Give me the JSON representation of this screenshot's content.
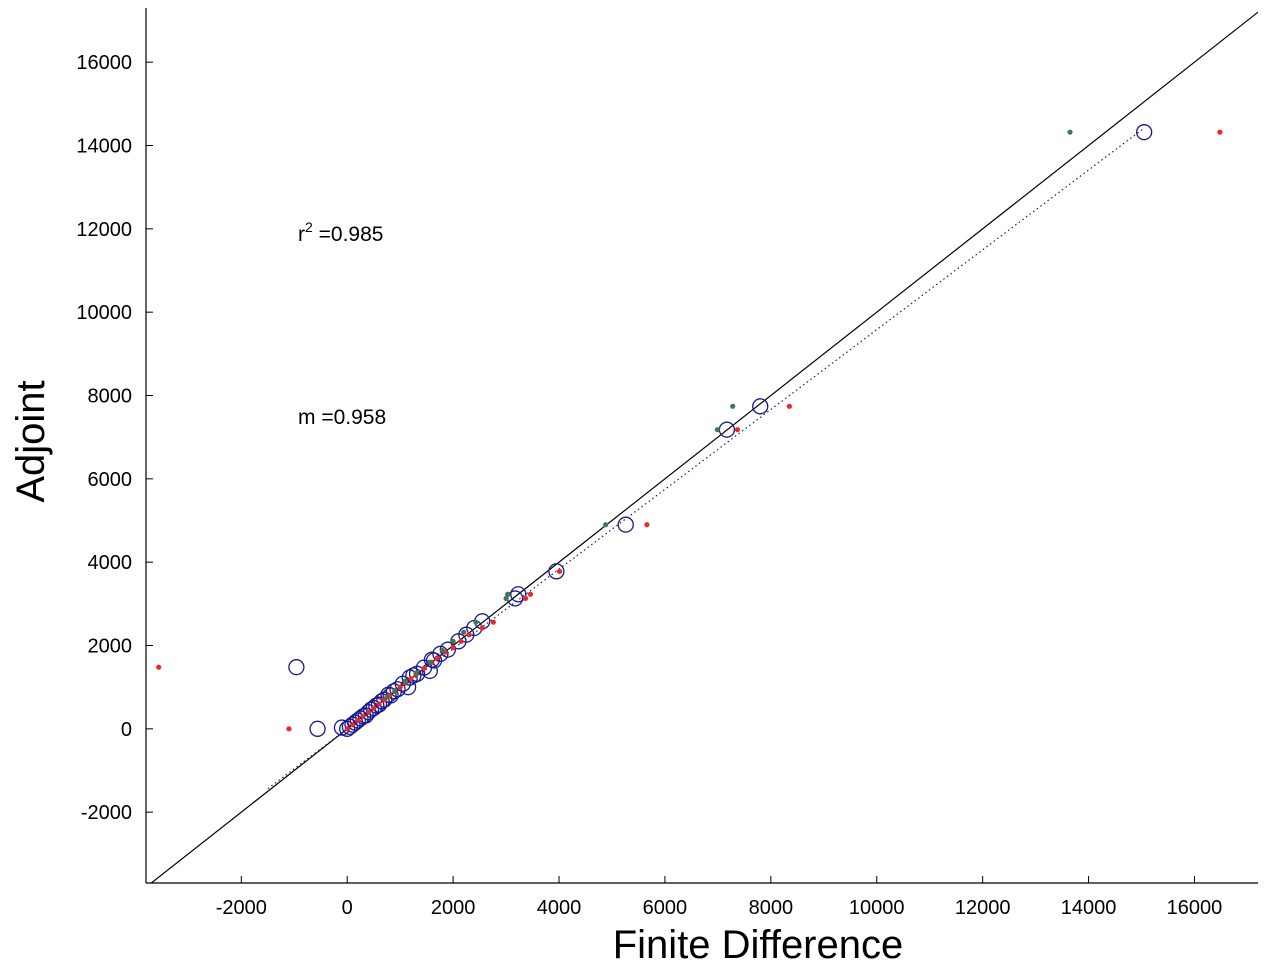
{
  "chart_data": {
    "type": "scatter",
    "title": "",
    "xlabel": "Finite Difference",
    "ylabel": "Adjoint",
    "xlim": [
      -3800,
      17200
    ],
    "ylim": [
      -3700,
      17300
    ],
    "xticks": [
      -2000,
      0,
      2000,
      4000,
      6000,
      8000,
      10000,
      12000,
      14000,
      16000
    ],
    "yticks": [
      -2000,
      0,
      2000,
      4000,
      6000,
      8000,
      10000,
      12000,
      14000,
      16000
    ],
    "xtick_labels": [
      "-2000",
      "0",
      "2000",
      "4000",
      "6000",
      "8000",
      "10000",
      "12000",
      "14000",
      "16000"
    ],
    "ytick_labels": [
      "-2000",
      "0",
      "2000",
      "4000",
      "6000",
      "8000",
      "10000",
      "12000",
      "14000",
      "16000"
    ],
    "grid": false,
    "annotations": {
      "r2_prefix": "r",
      "r2_sup": "2",
      "r2_value": " =0.985",
      "slope_text": "m =0.958"
    },
    "colors": {
      "circles": "#1a1a8c",
      "red_points": "#e8282a",
      "green_points": "#3d7a4d",
      "identity_line": "#000000",
      "fit_line": "#1a1a8c"
    },
    "reference_lines": [
      {
        "kind": "identity",
        "slope": 1,
        "intercept": 0,
        "style": "solid"
      },
      {
        "kind": "fit",
        "slope": 0.958,
        "intercept": 0,
        "style": "dotted"
      }
    ],
    "series": [
      {
        "marker": "open-circle",
        "points": [
          [
            15050,
            14320
          ],
          [
            7800,
            7740
          ],
          [
            7170,
            7180
          ],
          [
            5260,
            4900
          ],
          [
            3950,
            3780
          ],
          [
            3230,
            3230
          ],
          [
            3170,
            3130
          ],
          [
            2550,
            2580
          ],
          [
            2400,
            2420
          ],
          [
            2250,
            2260
          ],
          [
            2100,
            2100
          ],
          [
            1900,
            1900
          ],
          [
            1760,
            1800
          ],
          [
            1640,
            1640
          ],
          [
            1600,
            1660
          ],
          [
            1560,
            1390
          ],
          [
            1450,
            1470
          ],
          [
            1320,
            1320
          ],
          [
            1250,
            1280
          ],
          [
            1180,
            1230
          ],
          [
            1150,
            1000
          ],
          [
            1050,
            1080
          ],
          [
            950,
            950
          ],
          [
            880,
            900
          ],
          [
            820,
            800
          ],
          [
            780,
            820
          ],
          [
            700,
            700
          ],
          [
            650,
            660
          ],
          [
            600,
            580
          ],
          [
            550,
            560
          ],
          [
            500,
            500
          ],
          [
            450,
            460
          ],
          [
            400,
            400
          ],
          [
            350,
            320
          ],
          [
            300,
            300
          ],
          [
            250,
            250
          ],
          [
            200,
            200
          ],
          [
            150,
            150
          ],
          [
            100,
            100
          ],
          [
            50,
            50
          ],
          [
            0,
            0
          ],
          [
            -960,
            1480
          ],
          [
            -560,
            0
          ],
          [
            -100,
            30
          ]
        ]
      },
      {
        "marker": "dot-red",
        "points": [
          [
            16480,
            14320
          ],
          [
            8350,
            7740
          ],
          [
            7370,
            7180
          ],
          [
            5660,
            4900
          ],
          [
            4010,
            3780
          ],
          [
            3460,
            3230
          ],
          [
            3370,
            3130
          ],
          [
            2760,
            2560
          ],
          [
            2550,
            2420
          ],
          [
            2300,
            2260
          ],
          [
            2150,
            2100
          ],
          [
            2000,
            1950
          ],
          [
            1850,
            1840
          ],
          [
            1700,
            1700
          ],
          [
            1600,
            1600
          ],
          [
            1450,
            1450
          ],
          [
            1300,
            1300
          ],
          [
            1200,
            1200
          ],
          [
            1100,
            1100
          ],
          [
            1000,
            1000
          ],
          [
            900,
            900
          ],
          [
            800,
            800
          ],
          [
            700,
            700
          ],
          [
            600,
            600
          ],
          [
            500,
            500
          ],
          [
            400,
            400
          ],
          [
            300,
            300
          ],
          [
            200,
            200
          ],
          [
            100,
            100
          ],
          [
            0,
            0
          ],
          [
            -3560,
            1480
          ],
          [
            -1100,
            0
          ]
        ]
      },
      {
        "marker": "dot-green",
        "points": [
          [
            13650,
            14320
          ],
          [
            7280,
            7740
          ],
          [
            6990,
            7180
          ],
          [
            4880,
            4900
          ],
          [
            3030,
            3230
          ],
          [
            3000,
            3130
          ],
          [
            2430,
            2560
          ],
          [
            2200,
            2320
          ],
          [
            2000,
            2100
          ],
          [
            1800,
            1880
          ],
          [
            1560,
            1600
          ],
          [
            1300,
            1340
          ],
          [
            1100,
            1150
          ],
          [
            900,
            920
          ],
          [
            750,
            760
          ]
        ]
      }
    ]
  }
}
